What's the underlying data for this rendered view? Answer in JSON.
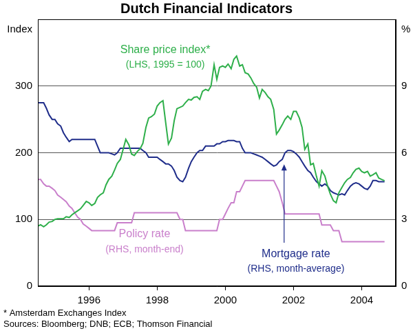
{
  "chart_data": {
    "type": "line",
    "title": "Dutch Financial Indicators",
    "ylabel": "Index",
    "y2label": "%",
    "x": [
      1994.5,
      1994.58,
      1994.67,
      1994.75,
      1994.83,
      1994.92,
      1995,
      1995.08,
      1995.17,
      1995.25,
      1995.33,
      1995.42,
      1995.5,
      1995.58,
      1995.67,
      1995.75,
      1995.83,
      1995.92,
      1996,
      1996.08,
      1996.17,
      1996.25,
      1996.33,
      1996.42,
      1996.5,
      1996.58,
      1996.67,
      1996.75,
      1996.83,
      1996.92,
      1997,
      1997.08,
      1997.17,
      1997.25,
      1997.33,
      1997.42,
      1997.5,
      1997.58,
      1997.67,
      1997.75,
      1997.83,
      1997.92,
      1998,
      1998.08,
      1998.17,
      1998.25,
      1998.33,
      1998.42,
      1998.5,
      1998.58,
      1998.67,
      1998.75,
      1998.83,
      1998.92,
      1999,
      1999.08,
      1999.17,
      1999.25,
      1999.33,
      1999.42,
      1999.5,
      1999.58,
      1999.67,
      1999.75,
      1999.83,
      1999.92,
      2000,
      2000.08,
      2000.17,
      2000.25,
      2000.33,
      2000.42,
      2000.5,
      2000.58,
      2000.67,
      2000.75,
      2000.83,
      2000.92,
      2001,
      2001.08,
      2001.17,
      2001.25,
      2001.33,
      2001.42,
      2001.5,
      2001.58,
      2001.67,
      2001.75,
      2001.83,
      2001.92,
      2002,
      2002.08,
      2002.17,
      2002.25,
      2002.33,
      2002.42,
      2002.5,
      2002.58,
      2002.67,
      2002.75,
      2002.83,
      2002.92,
      2003,
      2003.08,
      2003.17,
      2003.25,
      2003.33,
      2003.42,
      2003.5,
      2003.58,
      2003.67,
      2003.75,
      2003.83,
      2003.92,
      2004,
      2004.08,
      2004.17,
      2004.25,
      2004.33,
      2004.42,
      2004.5,
      2004.58,
      2004.67
    ],
    "xlim": [
      1994.5,
      2005
    ],
    "xticks": [
      1996,
      1998,
      2000,
      2002,
      2004
    ],
    "ylim": [
      0,
      400
    ],
    "yticks": [
      0,
      100,
      200,
      300
    ],
    "y2lim": [
      0,
      12
    ],
    "y2ticks": [
      0,
      3,
      6,
      9
    ],
    "grid": true,
    "series": [
      {
        "name": "Share price index*",
        "description": "(LHS, 1995 = 100)",
        "color": "#2eaf4a",
        "axis": "y",
        "values": [
          90,
          92,
          89,
          92,
          96,
          97,
          100,
          101,
          101,
          101,
          104,
          103,
          107,
          110,
          113,
          116,
          121,
          127,
          125,
          121,
          124,
          133,
          137,
          140,
          152,
          160,
          165,
          174,
          184,
          190,
          205,
          220,
          212,
          198,
          196,
          202,
          206,
          214,
          238,
          252,
          254,
          258,
          270,
          275,
          278,
          245,
          213,
          222,
          248,
          266,
          268,
          270,
          275,
          280,
          279,
          283,
          284,
          280,
          292,
          295,
          293,
          300,
          332,
          310,
          328,
          330,
          328,
          333,
          326,
          340,
          345,
          330,
          332,
          320,
          318,
          312,
          304,
          298,
          282,
          295,
          290,
          284,
          280,
          265,
          228,
          234,
          242,
          250,
          255,
          250,
          262,
          262,
          252,
          238,
          205,
          213,
          182,
          184,
          165,
          150,
          173,
          165,
          150,
          138,
          128,
          125,
          140,
          148,
          155,
          160,
          163,
          170,
          175,
          177,
          172,
          170,
          172,
          165,
          167,
          170,
          162,
          160,
          158
        ]
      },
      {
        "name": "Policy rate",
        "description": "(RHS, month-end)",
        "color": "#c97fcb",
        "axis": "y2",
        "values": [
          4.8,
          4.8,
          4.6,
          4.5,
          4.5,
          4.4,
          4.3,
          4.1,
          4.0,
          3.9,
          3.8,
          3.6,
          3.5,
          3.3,
          3.1,
          3.0,
          2.8,
          2.7,
          2.6,
          2.5,
          2.5,
          2.5,
          2.5,
          2.5,
          2.5,
          2.5,
          2.5,
          2.5,
          2.85,
          2.85,
          2.85,
          2.85,
          2.85,
          2.85,
          3.3,
          3.3,
          3.3,
          3.3,
          3.3,
          3.3,
          3.3,
          3.3,
          3.3,
          3.3,
          3.3,
          3.3,
          3.3,
          3.3,
          3.3,
          3.3,
          3.0,
          3.0,
          2.5,
          2.5,
          2.5,
          2.5,
          2.5,
          2.5,
          2.5,
          2.5,
          2.5,
          2.5,
          2.5,
          2.5,
          3.0,
          3.0,
          3.25,
          3.5,
          3.75,
          3.75,
          4.25,
          4.25,
          4.5,
          4.75,
          4.75,
          4.75,
          4.75,
          4.75,
          4.75,
          4.75,
          4.75,
          4.75,
          4.75,
          4.75,
          4.5,
          4.25,
          3.75,
          3.25,
          3.25,
          3.25,
          3.25,
          3.25,
          3.25,
          3.25,
          3.25,
          3.25,
          3.25,
          3.25,
          3.25,
          3.25,
          2.75,
          2.75,
          2.75,
          2.75,
          2.5,
          2.5,
          2.5,
          2.0,
          2.0,
          2.0,
          2.0,
          2.0,
          2.0,
          2.0,
          2.0,
          2.0,
          2.0,
          2.0,
          2.0,
          2.0,
          2.0,
          2.0,
          2.0
        ]
      },
      {
        "name": "Mortgage rate",
        "description": "(RHS, month-average)",
        "color": "#1f2d8a",
        "axis": "y2",
        "values": [
          8.25,
          8.25,
          8.25,
          8.0,
          7.7,
          7.5,
          7.5,
          7.3,
          7.2,
          6.9,
          6.7,
          6.5,
          6.6,
          6.6,
          6.6,
          6.6,
          6.6,
          6.6,
          6.6,
          6.6,
          6.6,
          6.3,
          6.0,
          6.0,
          6.0,
          6.0,
          5.95,
          5.9,
          6.0,
          6.2,
          6.2,
          6.2,
          6.2,
          6.2,
          6.2,
          6.2,
          6.2,
          6.1,
          6.0,
          5.8,
          5.8,
          5.8,
          5.8,
          5.7,
          5.6,
          5.5,
          5.5,
          5.4,
          5.2,
          4.9,
          4.75,
          4.7,
          4.9,
          5.3,
          5.6,
          5.8,
          6.0,
          6.1,
          6.1,
          6.3,
          6.3,
          6.3,
          6.3,
          6.4,
          6.4,
          6.5,
          6.5,
          6.55,
          6.55,
          6.55,
          6.5,
          6.5,
          6.2,
          6.0,
          6.0,
          6.0,
          5.95,
          5.9,
          5.85,
          5.8,
          5.7,
          5.6,
          5.5,
          5.4,
          5.45,
          5.6,
          5.7,
          6.0,
          6.1,
          6.1,
          6.05,
          5.95,
          5.8,
          5.6,
          5.4,
          5.2,
          5.1,
          4.9,
          4.7,
          4.6,
          4.5,
          4.6,
          4.5,
          4.3,
          4.2,
          4.15,
          4.1,
          4.15,
          4.1,
          4.3,
          4.5,
          4.6,
          4.65,
          4.6,
          4.5,
          4.4,
          4.35,
          4.5,
          4.75,
          4.75,
          4.7,
          4.7,
          4.7
        ]
      }
    ],
    "notes": [
      "* Amsterdam Exchanges Index",
      "Sources: Bloomberg; DNB; ECB; Thomson Financial"
    ]
  }
}
